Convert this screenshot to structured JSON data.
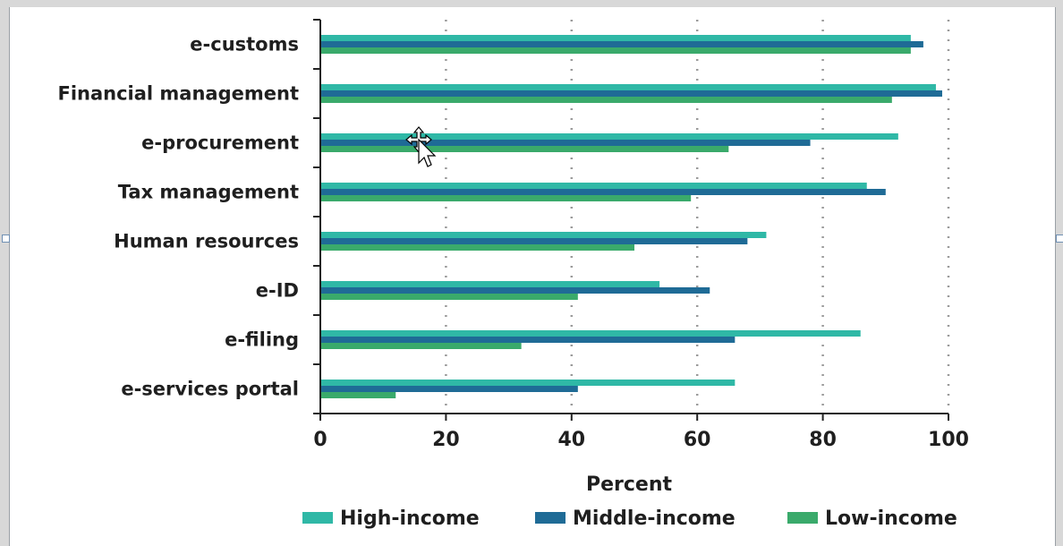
{
  "chart_data": {
    "type": "bar",
    "orientation": "horizontal",
    "categories": [
      "e-customs",
      "Financial management",
      "e-procurement",
      "Tax management",
      "Human resources",
      "e-ID",
      "e-filing",
      "e-services portal"
    ],
    "series": [
      {
        "name": "High-income",
        "color": "#2fb8a6",
        "values": [
          94,
          98,
          92,
          87,
          71,
          54,
          86,
          66
        ]
      },
      {
        "name": "Middle-income",
        "color": "#1f6b96",
        "values": [
          96,
          99,
          78,
          90,
          68,
          62,
          66,
          41
        ]
      },
      {
        "name": "Low-income",
        "color": "#3aaa6b",
        "values": [
          94,
          91,
          65,
          59,
          50,
          41,
          32,
          12
        ]
      }
    ],
    "xticks": [
      "0",
      "20",
      "40",
      "60",
      "80",
      "100"
    ],
    "xlim": [
      0,
      100
    ],
    "xlabel": "Percent",
    "grid": "vertical dotted",
    "legend": "bottom"
  },
  "icons": {
    "cursor": "move-cursor-icon"
  }
}
